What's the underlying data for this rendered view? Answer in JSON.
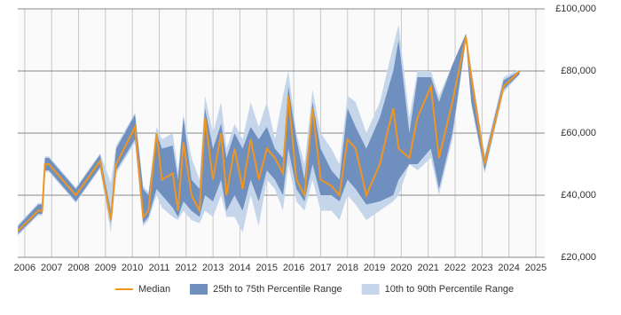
{
  "chart_data": {
    "type": "line",
    "x": [
      2005.75,
      2006.5,
      2006.65,
      2006.75,
      2006.9,
      2007.9,
      2008.8,
      2009.2,
      2009.4,
      2010.1,
      2010.4,
      2010.6,
      2010.9,
      2011.1,
      2011.5,
      2011.7,
      2011.9,
      2012.2,
      2012.5,
      2012.7,
      2013.0,
      2013.3,
      2013.5,
      2013.8,
      2014.1,
      2014.4,
      2014.7,
      2015.0,
      2015.3,
      2015.6,
      2015.8,
      2016.1,
      2016.4,
      2016.7,
      2017.0,
      2017.4,
      2017.7,
      2018.0,
      2018.3,
      2018.7,
      2019.2,
      2019.7,
      2019.9,
      2020.3,
      2020.6,
      2021.1,
      2021.4,
      2021.9,
      2022.4,
      2022.6,
      2023.1,
      2023.8,
      2024.4
    ],
    "bands": [
      {
        "name": "10th to 90th Percentile Range",
        "color": "#c5d6eb",
        "lower": [
          27000,
          33500,
          33500,
          47500,
          47500,
          37500,
          48500,
          28000,
          47000,
          57000,
          30000,
          32000,
          40000,
          36000,
          33000,
          32000,
          35000,
          32000,
          31000,
          35000,
          33000,
          40000,
          33000,
          33000,
          28000,
          40000,
          30000,
          45000,
          42000,
          35000,
          50000,
          38000,
          35000,
          45000,
          35000,
          35000,
          32000,
          40000,
          37000,
          32000,
          35000,
          38000,
          40000,
          50000,
          48000,
          52000,
          40000,
          58000,
          90000,
          69000,
          47000,
          73000,
          79000
        ],
        "upper": [
          30500,
          37500,
          37500,
          52500,
          52500,
          42500,
          53500,
          44000,
          56000,
          66500,
          43000,
          41000,
          62000,
          58000,
          60000,
          48000,
          66000,
          52000,
          45000,
          72000,
          60000,
          70000,
          55000,
          63000,
          58000,
          70000,
          62000,
          70000,
          58000,
          72000,
          80000,
          60000,
          50000,
          74000,
          60000,
          55000,
          50000,
          72000,
          70000,
          60000,
          70000,
          88000,
          95000,
          65000,
          80000,
          80000,
          72000,
          82000,
          92000,
          81000,
          53000,
          78000,
          80500
        ]
      },
      {
        "name": "25th to 75th Percentile Range",
        "color": "#6f8fbf",
        "lower": [
          27500,
          34000,
          34000,
          48000,
          48000,
          38000,
          49000,
          31000,
          48000,
          58000,
          31000,
          33000,
          42000,
          40000,
          36000,
          33000,
          38000,
          35000,
          33000,
          40000,
          38000,
          45000,
          35000,
          40000,
          35000,
          45000,
          38000,
          48000,
          45000,
          40000,
          55000,
          42000,
          38000,
          50000,
          40000,
          40000,
          38000,
          45000,
          42000,
          37000,
          38000,
          40000,
          45000,
          50000,
          50000,
          55000,
          42000,
          60000,
          90000,
          70000,
          48000,
          74000,
          79000
        ],
        "upper": [
          30000,
          37000,
          37000,
          52000,
          52000,
          42000,
          53000,
          35000,
          55000,
          66000,
          42000,
          40000,
          60000,
          55000,
          56000,
          45000,
          65000,
          45000,
          42000,
          68000,
          55000,
          63000,
          52000,
          60000,
          55000,
          62000,
          58000,
          62000,
          55000,
          52000,
          75000,
          58000,
          45000,
          70000,
          55000,
          48000,
          45000,
          68000,
          62000,
          55000,
          65000,
          80000,
          90000,
          60000,
          78000,
          78000,
          70000,
          82000,
          92000,
          80000,
          52000,
          77000,
          80000
        ]
      }
    ],
    "series": [
      {
        "name": "Median",
        "color": "#f0961e",
        "values": [
          28500,
          35000,
          35000,
          50000,
          50000,
          40000,
          51000,
          32000,
          50000,
          62000,
          33000,
          35000,
          60000,
          45000,
          47000,
          35000,
          57000,
          40000,
          35000,
          65000,
          45000,
          60000,
          40000,
          55000,
          42000,
          58000,
          45000,
          55000,
          52000,
          47000,
          72000,
          45000,
          40000,
          68000,
          45000,
          43000,
          40000,
          58000,
          55000,
          40000,
          50000,
          68000,
          55000,
          52000,
          65000,
          75000,
          52000,
          70000,
          91000,
          78000,
          50000,
          75000,
          80000
        ]
      }
    ],
    "xlim": [
      2005.74,
      2025.33
    ],
    "xticks": [
      2006,
      2007,
      2008,
      2009,
      2010,
      2011,
      2012,
      2013,
      2014,
      2015,
      2016,
      2017,
      2018,
      2019,
      2020,
      2021,
      2022,
      2023,
      2024,
      2025
    ],
    "ylim": [
      20000,
      100000
    ],
    "yticks": [
      {
        "value": 20000,
        "label": "£20,000"
      },
      {
        "value": 40000,
        "label": "£40,000"
      },
      {
        "value": 60000,
        "label": "£60,000"
      },
      {
        "value": 80000,
        "label": "£80,000"
      },
      {
        "value": 100000,
        "label": "£100,000"
      }
    ],
    "grid": true
  }
}
